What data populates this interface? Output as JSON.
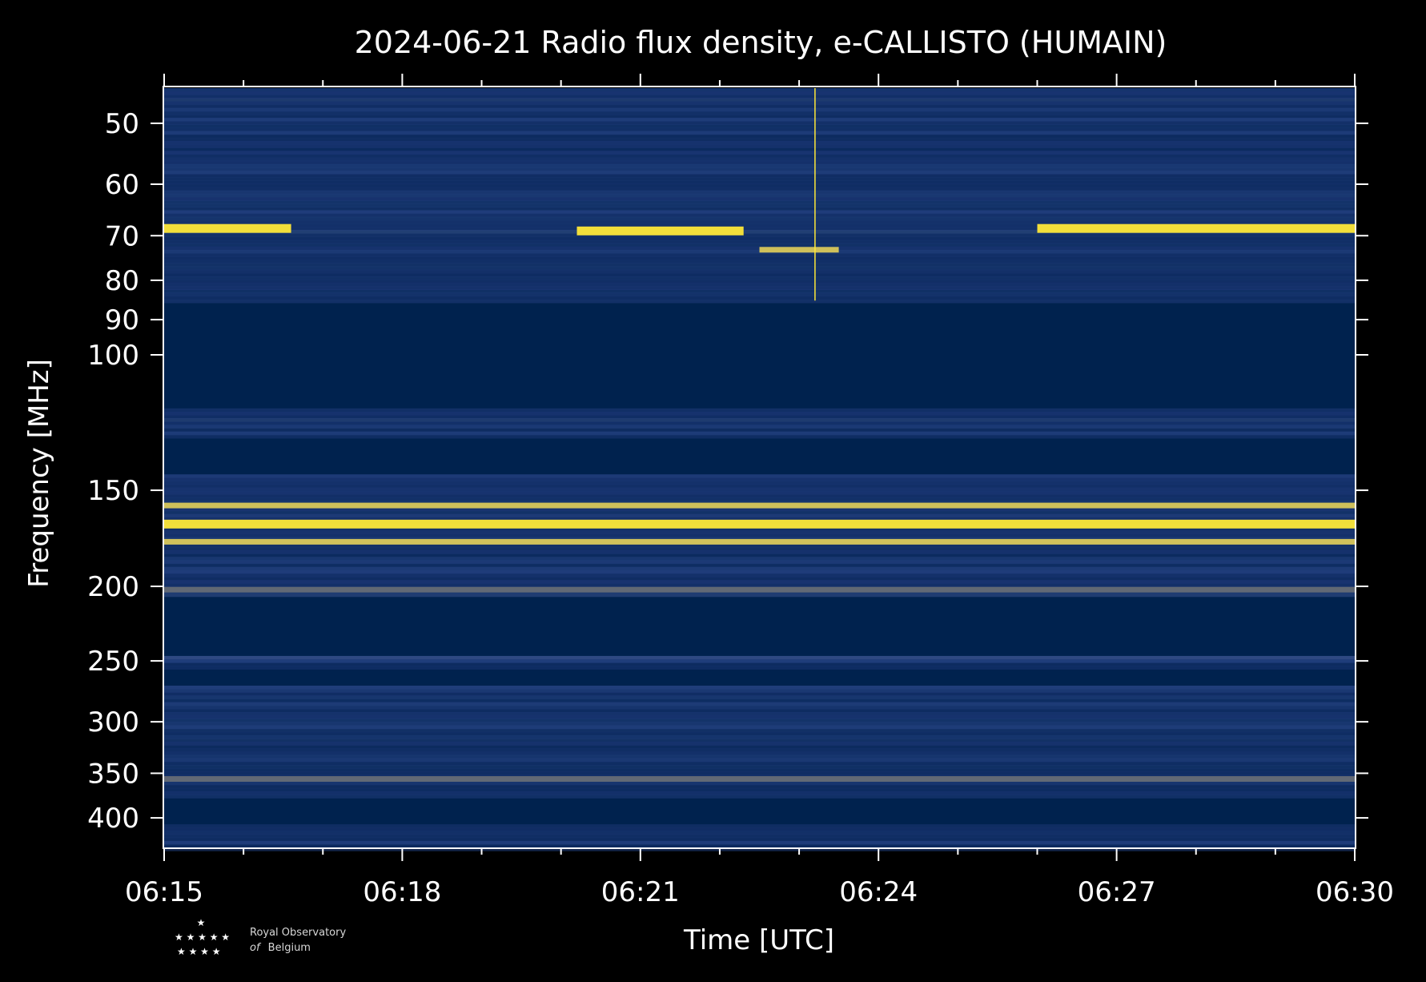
{
  "colors": {
    "background": "#000000",
    "plot_base": "#00224e",
    "noise_mid": "#1f3d7a",
    "grey_band": "#7c7b78",
    "yellow_hot": "#fee838",
    "axes": "#ffffff"
  },
  "logo": {
    "line1": "Royal Observatory",
    "line2_prefix": "of",
    "line2_rest": "Belgium"
  },
  "chart_data": {
    "type": "heatmap",
    "title": "2024-06-21 Radio flux density, e-CALLISTO (HUMAIN)",
    "xlabel": "Time [UTC]",
    "ylabel": "Frequency [MHz]",
    "colormap": "cividis",
    "x_range_minutes": [
      0,
      15
    ],
    "x_ticks": [
      {
        "minutes": 0,
        "label": "06:15"
      },
      {
        "minutes": 3,
        "label": "06:18"
      },
      {
        "minutes": 6,
        "label": "06:21"
      },
      {
        "minutes": 9,
        "label": "06:24"
      },
      {
        "minutes": 12,
        "label": "06:27"
      },
      {
        "minutes": 15,
        "label": "06:30"
      }
    ],
    "x_minor_tick_interval_minutes": 1,
    "y_scale": "log",
    "y_inverted": true,
    "y_range_mhz": [
      45,
      437
    ],
    "y_ticks": [
      50,
      60,
      70,
      80,
      90,
      100,
      150,
      200,
      250,
      300,
      350,
      400
    ],
    "no_data_bands_mhz": [
      [
        85,
        117
      ],
      [
        128,
        142
      ],
      [
        206,
        245
      ],
      [
        256,
        268
      ],
      [
        375,
        405
      ]
    ],
    "features": [
      {
        "type": "band",
        "f_mhz": 68.5,
        "start_min": 0,
        "end_min": 1.6,
        "intensity": "high"
      },
      {
        "type": "band",
        "f_mhz": 69,
        "start_min": 5.2,
        "end_min": 7.3,
        "intensity": "high"
      },
      {
        "type": "band",
        "f_mhz": 73,
        "start_min": 7.5,
        "end_min": 8.5,
        "intensity": "medium"
      },
      {
        "type": "band",
        "f_mhz": 68.5,
        "start_min": 11,
        "end_min": 15,
        "intensity": "high"
      },
      {
        "type": "band",
        "f_mhz": 157,
        "start_min": 0,
        "end_min": 15,
        "intensity": "medium"
      },
      {
        "type": "band",
        "f_mhz": 166,
        "start_min": 0,
        "end_min": 15,
        "intensity": "high"
      },
      {
        "type": "band",
        "f_mhz": 175,
        "start_min": 0,
        "end_min": 15,
        "intensity": "medium"
      },
      {
        "type": "band",
        "f_mhz": 202,
        "start_min": 0,
        "end_min": 15,
        "intensity": "low"
      },
      {
        "type": "band",
        "f_mhz": 356,
        "start_min": 0,
        "end_min": 15,
        "intensity": "low"
      },
      {
        "type": "spike",
        "t_min": 8.2,
        "f_range_mhz": [
          45,
          85
        ],
        "intensity": "high"
      }
    ]
  }
}
